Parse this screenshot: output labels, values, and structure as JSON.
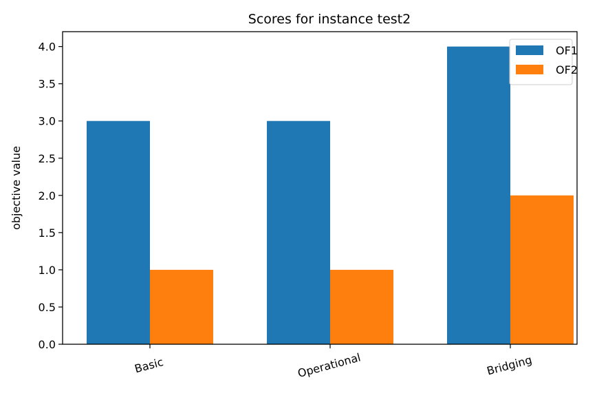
{
  "chart_data": {
    "type": "bar",
    "title": "Scores for instance test2",
    "xlabel": "",
    "ylabel": "objective value",
    "categories": [
      "Basic",
      "Operational",
      "Bridging"
    ],
    "series": [
      {
        "name": "OF1",
        "values": [
          3.0,
          3.0,
          4.0
        ],
        "color": "#1f77b4"
      },
      {
        "name": "OF2",
        "values": [
          1.0,
          1.0,
          2.0
        ],
        "color": "#ff7f0e"
      }
    ],
    "ylim": [
      0,
      4.2
    ],
    "yticks": [
      "0.0",
      "0.5",
      "1.0",
      "1.5",
      "2.0",
      "2.5",
      "3.0",
      "3.5",
      "4.0"
    ],
    "grid": false,
    "legend_position": "top-right"
  }
}
